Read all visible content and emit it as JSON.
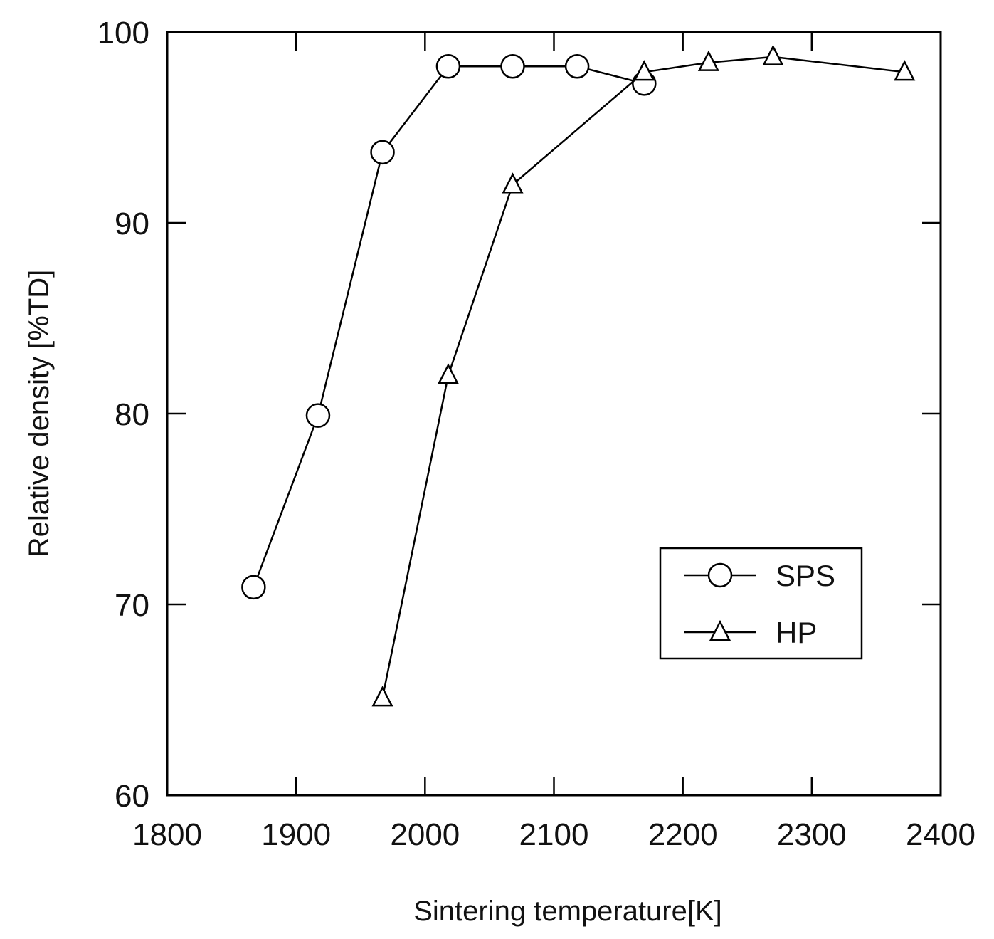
{
  "chart_data": {
    "type": "line",
    "title": "",
    "xlabel": "Sintering temperature[K]",
    "ylabel": "Relative density [%TD]",
    "xlim": [
      1800,
      2400
    ],
    "ylim": [
      60,
      100
    ],
    "xticks": [
      1800,
      1900,
      2000,
      2100,
      2200,
      2300,
      2400
    ],
    "yticks": [
      60,
      70,
      80,
      90,
      100
    ],
    "xtick_labels": [
      "1800",
      "1900",
      "2000",
      "2100",
      "2200",
      "2300",
      "2400"
    ],
    "ytick_labels": [
      "60",
      "70",
      "80",
      "90",
      "100"
    ],
    "grid": false,
    "legend_position": "lower-right",
    "series": [
      {
        "name": "SPS",
        "marker": "circle",
        "x": [
          1867,
          1917,
          1967,
          2018,
          2068,
          2118,
          2170
        ],
        "y": [
          70.9,
          79.9,
          93.7,
          98.2,
          98.2,
          98.2,
          97.3
        ]
      },
      {
        "name": "HP",
        "marker": "triangle",
        "x": [
          1967,
          2018,
          2068,
          2170,
          2220,
          2270,
          2372
        ],
        "y": [
          65.1,
          82.0,
          92.0,
          97.9,
          98.4,
          98.7,
          97.9
        ]
      }
    ]
  }
}
